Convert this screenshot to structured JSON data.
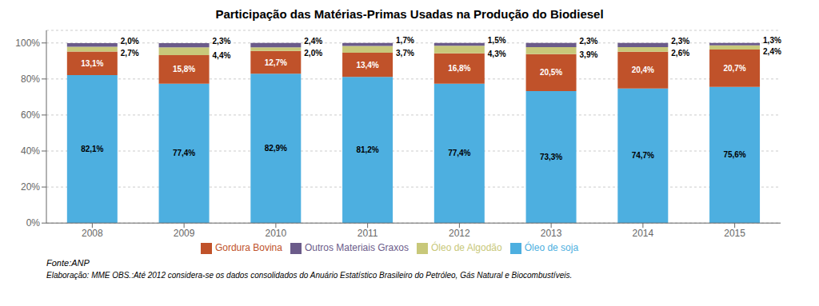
{
  "chart_data": {
    "type": "bar",
    "stacked": true,
    "title": "Participação das Matérias-Primas Usadas na Produção do Biodiesel",
    "categories": [
      "2008",
      "2009",
      "2010",
      "2011",
      "2012",
      "2013",
      "2014",
      "2015"
    ],
    "series": [
      {
        "name": "Óleo de soja",
        "color": "#4DAFE0",
        "values": [
          82.1,
          77.4,
          82.9,
          81.2,
          77.4,
          73.3,
          74.7,
          75.6
        ],
        "value_labels": [
          "82,1%",
          "77,4%",
          "82,9%",
          "81,2%",
          "77,4%",
          "73,3%",
          "74,7%",
          "75,6%"
        ]
      },
      {
        "name": "Gordura Bovina",
        "color": "#C0522A",
        "values": [
          13.1,
          15.8,
          12.7,
          13.4,
          16.8,
          20.5,
          20.4,
          20.7
        ],
        "value_labels": [
          "13,1%",
          "15,8%",
          "12,7%",
          "13,4%",
          "16,8%",
          "20,5%",
          "20,4%",
          "20,7%"
        ]
      },
      {
        "name": "Óleo de Algodão",
        "color": "#C8C87A",
        "values": [
          2.7,
          4.4,
          2.0,
          3.7,
          4.3,
          3.9,
          2.6,
          2.4
        ],
        "value_labels": [
          "2,7%",
          "4,4%",
          "2,0%",
          "3,7%",
          "4,3%",
          "3,9%",
          "2,6%",
          "2,4%"
        ]
      },
      {
        "name": "Outros Materiais Graxos",
        "color": "#6B5B8A",
        "values": [
          2.0,
          2.3,
          2.4,
          1.7,
          1.5,
          2.3,
          2.3,
          1.3
        ],
        "value_labels": [
          "2,0%",
          "2,3%",
          "2,4%",
          "1,7%",
          "1,5%",
          "2,3%",
          "2,3%",
          "1,3%"
        ]
      }
    ],
    "ylim": [
      0,
      107
    ],
    "yticks": [
      {
        "value": 0,
        "label": "0%"
      },
      {
        "value": 20,
        "label": "20%"
      },
      {
        "value": 40,
        "label": "40%"
      },
      {
        "value": 60,
        "label": "60%"
      },
      {
        "value": 80,
        "label": "80%"
      },
      {
        "value": 100,
        "label": "100%"
      }
    ],
    "grid": true,
    "legend": "bottom",
    "data_labels": true,
    "annotations": [
      "Fonte:ANP",
      "Elaboração: MME  OBS.:Até 2012 considera-se os dados consolidados do Anuário Estatístico Brasileiro do Petróleo, Gás Natural e Biocombustíveis."
    ]
  }
}
